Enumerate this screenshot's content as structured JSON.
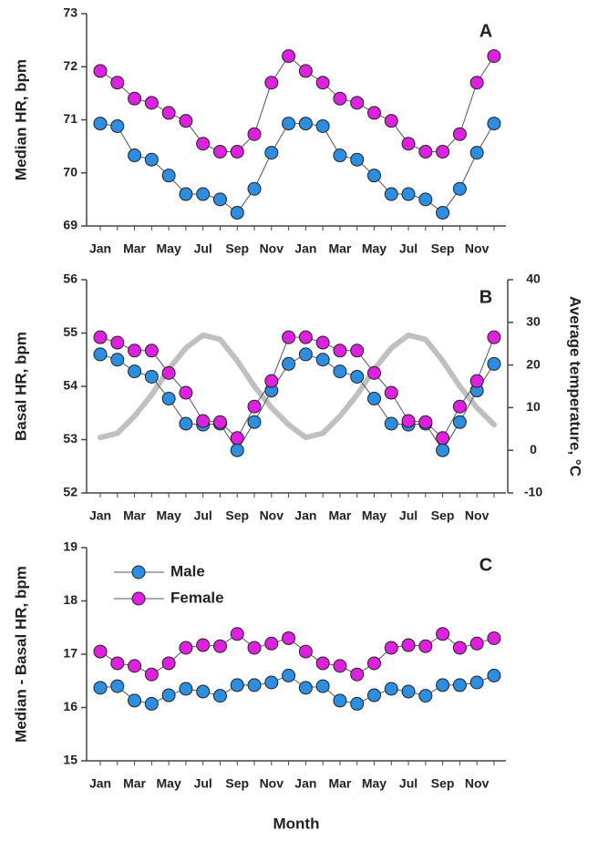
{
  "chart_data": [
    {
      "type": "line",
      "panel_label": "A",
      "ylabel": "Median HR, bpm",
      "categories": [
        "Jan",
        null,
        "Mar",
        null,
        "May",
        null,
        "Jul",
        null,
        "Sep",
        null,
        "Nov",
        null,
        "Jan",
        null,
        "Mar",
        null,
        "May",
        null,
        "Jul",
        null,
        "Sep",
        null,
        "Nov",
        null
      ],
      "ylim": [
        69,
        73
      ],
      "yticks": [
        69,
        70,
        71,
        72,
        73
      ],
      "series": [
        {
          "color": "#2b8ee0",
          "values": [
            70.93,
            70.88,
            70.33,
            70.25,
            69.95,
            69.6,
            69.6,
            69.5,
            69.25,
            69.7,
            70.38,
            70.93,
            70.93,
            70.88,
            70.33,
            70.25,
            69.95,
            69.6,
            69.6,
            69.5,
            69.25,
            69.7,
            70.38,
            70.93
          ]
        },
        {
          "color": "#e020e0",
          "values": [
            71.92,
            71.7,
            71.4,
            71.32,
            71.13,
            70.98,
            70.55,
            70.4,
            70.4,
            70.73,
            71.7,
            72.2,
            71.92,
            71.7,
            71.4,
            71.32,
            71.13,
            70.98,
            70.55,
            70.4,
            70.4,
            70.73,
            71.7,
            72.2
          ]
        }
      ]
    },
    {
      "type": "line",
      "panel_label": "B",
      "ylabel": "Basal HR, bpm",
      "y2label": "Average temperature, °C",
      "categories": [
        "Jan",
        null,
        "Mar",
        null,
        "May",
        null,
        "Jul",
        null,
        "Sep",
        null,
        "Nov",
        null,
        "Jan",
        null,
        "Mar",
        null,
        "May",
        null,
        "Jul",
        null,
        "Sep",
        null,
        "Nov",
        null
      ],
      "ylim": [
        52,
        56
      ],
      "yticks": [
        52,
        53,
        54,
        55,
        56
      ],
      "y2lim": [
        -10,
        40
      ],
      "y2ticks": [
        -10,
        0,
        10,
        20,
        30,
        40
      ],
      "series": [
        {
          "color": "#c0c0c0",
          "axis": "y2",
          "values": [
            3,
            4,
            8,
            13,
            19,
            24,
            27,
            26,
            21,
            15,
            10,
            6,
            3,
            4,
            8,
            13,
            19,
            24,
            27,
            26,
            21,
            15,
            10,
            6
          ]
        },
        {
          "color": "#2b8ee0",
          "values": [
            54.6,
            54.5,
            54.28,
            54.18,
            53.77,
            53.3,
            53.28,
            53.3,
            52.8,
            53.33,
            53.92,
            54.42,
            54.6,
            54.5,
            54.28,
            54.18,
            53.77,
            53.3,
            53.28,
            53.3,
            52.8,
            53.33,
            53.92,
            54.42
          ]
        },
        {
          "color": "#e020e0",
          "values": [
            54.92,
            54.82,
            54.67,
            54.67,
            54.25,
            53.88,
            53.35,
            53.33,
            53.03,
            53.62,
            54.1,
            54.92,
            54.92,
            54.82,
            54.67,
            54.67,
            54.25,
            53.88,
            53.35,
            53.33,
            53.03,
            53.62,
            54.1,
            54.92
          ]
        }
      ]
    },
    {
      "type": "line",
      "panel_label": "C",
      "ylabel": "Median - Basal HR, bpm",
      "xlabel": "Month",
      "legend": "upper left",
      "categories": [
        "Jan",
        null,
        "Mar",
        null,
        "May",
        null,
        "Jul",
        null,
        "Sep",
        null,
        "Nov",
        null,
        "Jan",
        null,
        "Mar",
        null,
        "May",
        null,
        "Jul",
        null,
        "Sep",
        null,
        "Nov",
        null
      ],
      "ylim": [
        15,
        19
      ],
      "yticks": [
        15,
        16,
        17,
        18,
        19
      ],
      "series": [
        {
          "name": "Male",
          "color": "#2b8ee0",
          "values": [
            16.37,
            16.4,
            16.13,
            16.07,
            16.23,
            16.35,
            16.3,
            16.22,
            16.42,
            16.42,
            16.47,
            16.6,
            16.37,
            16.4,
            16.13,
            16.07,
            16.23,
            16.35,
            16.3,
            16.22,
            16.42,
            16.42,
            16.47,
            16.6
          ]
        },
        {
          "name": "Female",
          "color": "#e020e0",
          "values": [
            17.05,
            16.83,
            16.78,
            16.62,
            16.83,
            17.12,
            17.17,
            17.15,
            17.38,
            17.12,
            17.2,
            17.3,
            17.05,
            16.83,
            16.78,
            16.62,
            16.83,
            17.12,
            17.17,
            17.15,
            17.38,
            17.12,
            17.2,
            17.3
          ]
        }
      ]
    }
  ]
}
